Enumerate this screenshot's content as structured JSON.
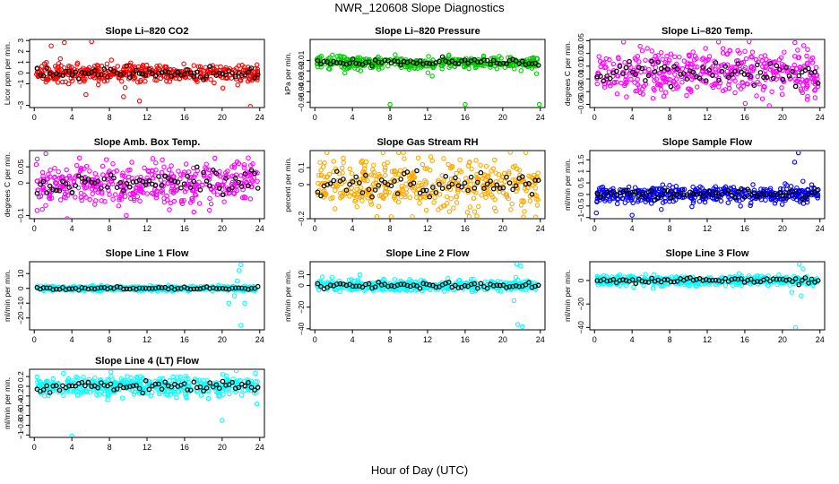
{
  "figure": {
    "title": "NWR_120608  Slope Diagnostics",
    "xlabel": "Hour of Day (UTC)"
  },
  "chart_data": [
    {
      "type": "scatter",
      "title": "Slope Li–820 CO2",
      "ylabel": "Licor ppm per min.",
      "color": "#ff0000",
      "xlim": [
        -0.5,
        24.5
      ],
      "ylim": [
        -3.2,
        3.1
      ],
      "yticks": [
        -3,
        -1,
        0,
        1,
        2,
        3
      ],
      "xticks": [
        0,
        4,
        8,
        12,
        16,
        20,
        24
      ],
      "scatter_sd": 0.4,
      "mean_offset": 0.0,
      "outliers": [
        [
          3.2,
          2.8
        ],
        [
          6.1,
          2.9
        ],
        [
          1.8,
          2.5
        ],
        [
          9.5,
          -2.2
        ],
        [
          11.2,
          -2.6
        ],
        [
          23.0,
          -3.1
        ],
        [
          5.5,
          -2.0
        ]
      ]
    },
    {
      "type": "scatter",
      "title": "Slope Li–820 Pressure",
      "ylabel": "kPa per min.",
      "color": "#00cc00",
      "xlim": [
        -0.5,
        24.5
      ],
      "ylim": [
        -0.055,
        0.01
      ],
      "yticks": [
        -0.05,
        -0.04,
        -0.03,
        -0.02,
        -0.01
      ],
      "xticks": [
        0,
        4,
        8,
        12,
        16,
        20,
        24
      ],
      "scatter_sd": 0.003,
      "mean_offset": -0.012,
      "outliers": [
        [
          8.0,
          -0.052
        ],
        [
          16.0,
          -0.052
        ],
        [
          23.9,
          -0.052
        ],
        [
          3.2,
          -0.022
        ],
        [
          12.5,
          -0.025
        ]
      ]
    },
    {
      "type": "scatter",
      "title": "Slope Li–820 Temp.",
      "ylabel": "degrees C per min.",
      "color": "#ff00ff",
      "xlim": [
        -0.5,
        24.5
      ],
      "ylim": [
        -0.055,
        0.052
      ],
      "yticks": [
        -0.05,
        -0.03,
        -0.01,
        0.01,
        0.03,
        0.05
      ],
      "xticks": [
        0,
        4,
        8,
        12,
        16,
        20,
        24
      ],
      "scatter_sd": 0.018,
      "mean_offset": 0.0,
      "outliers": [
        [
          3.1,
          0.048
        ],
        [
          13.2,
          0.048
        ],
        [
          18.6,
          -0.052
        ]
      ]
    },
    {
      "type": "scatter",
      "title": "Slope Amb. Box Temp.",
      "ylabel": "degrees C per min.",
      "color": "#ff00ff",
      "xlim": [
        -0.5,
        24.5
      ],
      "ylim": [
        -0.11,
        0.1
      ],
      "yticks": [
        -0.1,
        0.0,
        0.05
      ],
      "xticks": [
        0,
        4,
        8,
        12,
        16,
        20,
        24
      ],
      "scatter_sd": 0.035,
      "mean_offset": 0.0,
      "outliers": [
        [
          3.5,
          -0.11
        ],
        [
          9.8,
          -0.1
        ]
      ]
    },
    {
      "type": "scatter",
      "title": "Slope Gas Stream RH",
      "ylabel": "percent per min.",
      "color": "#ffaa00",
      "xlim": [
        -0.5,
        24.5
      ],
      "ylim": [
        -0.2,
        0.2
      ],
      "yticks": [
        -0.2,
        0.0,
        0.1
      ],
      "xticks": [
        0,
        4,
        8,
        12,
        16,
        20,
        24
      ],
      "scatter_sd": 0.07,
      "mean_offset": 0.0,
      "outliers": [
        [
          20.8,
          0.19
        ],
        [
          22.2,
          -0.19
        ],
        [
          23.5,
          -0.19
        ]
      ]
    },
    {
      "type": "scatter",
      "title": "Slope Sample Flow",
      "ylabel": "ml/min per min.",
      "color": "#0000ff",
      "xlim": [
        -0.5,
        24.5
      ],
      "ylim": [
        -1.05,
        1.9
      ],
      "yticks": [
        -1.0,
        -0.5,
        0.0,
        0.5,
        1.0,
        1.5
      ],
      "xticks": [
        0,
        4,
        8,
        12,
        16,
        20,
        24
      ],
      "scatter_sd": 0.18,
      "mean_offset": 0.0,
      "outliers": [
        [
          21.7,
          1.8
        ],
        [
          21.3,
          1.4
        ],
        [
          4.0,
          -0.9
        ],
        [
          0.2,
          -0.8
        ]
      ]
    },
    {
      "type": "scatter",
      "title": "Slope Line 1 Flow",
      "ylabel": "ml/min per min.",
      "color": "#00ffff",
      "xlim": [
        -0.5,
        24.5
      ],
      "ylim": [
        -28,
        18
      ],
      "yticks": [
        -20,
        -10,
        0,
        10
      ],
      "xticks": [
        0,
        4,
        8,
        12,
        16,
        20,
        24
      ],
      "scatter_sd": 0.8,
      "mean_offset": 0.0,
      "outliers": [
        [
          22.0,
          16
        ],
        [
          21.8,
          12
        ],
        [
          22.4,
          -10
        ],
        [
          22.0,
          -25
        ],
        [
          21.3,
          -5
        ],
        [
          20.7,
          -10
        ],
        [
          21.6,
          5
        ]
      ]
    },
    {
      "type": "scatter",
      "title": "Slope Line 2 Flow",
      "ylabel": "ml/min per min.",
      "color": "#00ffff",
      "xlim": [
        -0.5,
        24.5
      ],
      "ylim": [
        -41,
        22
      ],
      "yticks": [
        -40,
        -20,
        0,
        10
      ],
      "xticks": [
        0,
        4,
        8,
        12,
        16,
        20,
        24
      ],
      "scatter_sd": 2.5,
      "mean_offset": 0.0,
      "outliers": [
        [
          21.5,
          20
        ],
        [
          21.9,
          18
        ],
        [
          21.2,
          -14
        ],
        [
          22.1,
          -38
        ],
        [
          21.6,
          -36
        ],
        [
          0.8,
          8
        ],
        [
          4.8,
          10
        ]
      ]
    },
    {
      "type": "scatter",
      "title": "Slope Line 3 Flow",
      "ylabel": "ml/min per min.",
      "color": "#00ffff",
      "xlim": [
        -0.5,
        24.5
      ],
      "ylim": [
        -42,
        16
      ],
      "yticks": [
        -40,
        -20,
        0
      ],
      "xticks": [
        0,
        4,
        8,
        12,
        16,
        20,
        24
      ],
      "scatter_sd": 2.0,
      "mean_offset": 0.0,
      "outliers": [
        [
          21.4,
          -40
        ],
        [
          21.8,
          14
        ],
        [
          22.2,
          10
        ],
        [
          21.0,
          -10
        ],
        [
          22.0,
          -13
        ]
      ]
    },
    {
      "type": "scatter",
      "title": "Slope Line 4 (LT) Flow",
      "ylabel": "ml/min per min.",
      "color": "#00ffff",
      "xlim": [
        -0.5,
        24.5
      ],
      "ylim": [
        -1.05,
        0.35
      ],
      "yticks": [
        -1.0,
        -0.8,
        -0.6,
        -0.4,
        -0.2,
        0.0,
        0.2
      ],
      "xticks": [
        0,
        4,
        8,
        12,
        16,
        20,
        24
      ],
      "scatter_sd": 0.1,
      "mean_offset": 0.0,
      "outliers": [
        [
          4.0,
          -1.02
        ],
        [
          20.0,
          -0.7
        ],
        [
          21.5,
          0.32
        ]
      ]
    }
  ]
}
